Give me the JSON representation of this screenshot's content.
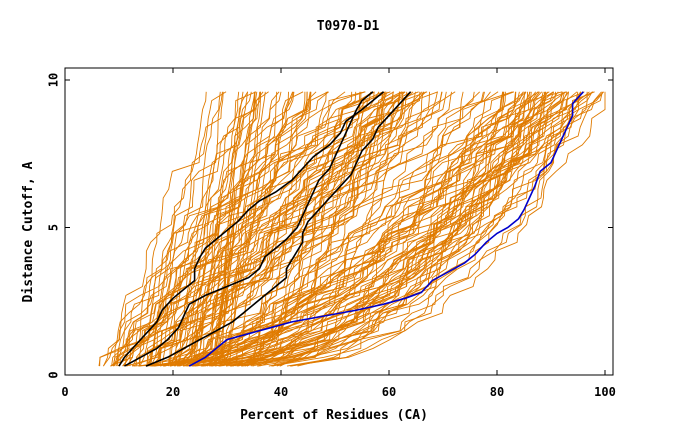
{
  "chart_data": {
    "type": "line",
    "title": "T0970-D1",
    "xlabel": "Percent of Residues (CA)",
    "ylabel": "Distance Cutoff, A",
    "xlim": [
      0,
      100
    ],
    "ylim": [
      0,
      10
    ],
    "xticks": [
      0,
      20,
      40,
      60,
      80,
      100
    ],
    "yticks": [
      0,
      5,
      10
    ],
    "xtick_labels": [
      "0",
      "20",
      "40",
      "60",
      "80",
      "100"
    ],
    "ytick_labels": [
      "0",
      "5",
      "10"
    ],
    "grid": false,
    "colors": {
      "background_models": "#e07b00",
      "highlight_black": "#000000",
      "highlight_blue": "#0000cc",
      "axes": "#000000"
    },
    "highlight_series": [
      {
        "color": "black",
        "points": [
          [
            10,
            0.3
          ],
          [
            11,
            0.6
          ],
          [
            13,
            1.0
          ],
          [
            15,
            1.4
          ],
          [
            17,
            1.8
          ],
          [
            18,
            2.2
          ],
          [
            20,
            2.6
          ],
          [
            22,
            2.9
          ],
          [
            24,
            3.2
          ],
          [
            24,
            3.6
          ],
          [
            25,
            4.0
          ],
          [
            26,
            4.3
          ],
          [
            28,
            4.6
          ],
          [
            30,
            4.9
          ],
          [
            32,
            5.2
          ],
          [
            34,
            5.6
          ],
          [
            36,
            5.9
          ],
          [
            39,
            6.2
          ],
          [
            42,
            6.6
          ],
          [
            44,
            7.0
          ],
          [
            46,
            7.4
          ],
          [
            49,
            7.8
          ],
          [
            51,
            8.2
          ],
          [
            52,
            8.6
          ],
          [
            55,
            9.0
          ],
          [
            57,
            9.3
          ],
          [
            59,
            9.6
          ]
        ]
      },
      {
        "color": "black",
        "points": [
          [
            11,
            0.3
          ],
          [
            14,
            0.6
          ],
          [
            17,
            0.9
          ],
          [
            19,
            1.2
          ],
          [
            21,
            1.6
          ],
          [
            22,
            2.0
          ],
          [
            23,
            2.4
          ],
          [
            26,
            2.7
          ],
          [
            30,
            3.0
          ],
          [
            34,
            3.3
          ],
          [
            36,
            3.6
          ],
          [
            37,
            4.0
          ],
          [
            39,
            4.3
          ],
          [
            41,
            4.6
          ],
          [
            43,
            5.0
          ],
          [
            44,
            5.4
          ],
          [
            45,
            5.8
          ],
          [
            46,
            6.2
          ],
          [
            47,
            6.6
          ],
          [
            49,
            7.0
          ],
          [
            50,
            7.4
          ],
          [
            51,
            7.8
          ],
          [
            52,
            8.2
          ],
          [
            53,
            8.6
          ],
          [
            54,
            9.0
          ],
          [
            55,
            9.3
          ],
          [
            57,
            9.6
          ]
        ]
      },
      {
        "color": "black",
        "points": [
          [
            15,
            0.3
          ],
          [
            19,
            0.6
          ],
          [
            22,
            0.9
          ],
          [
            25,
            1.2
          ],
          [
            28,
            1.5
          ],
          [
            31,
            1.8
          ],
          [
            33,
            2.1
          ],
          [
            35,
            2.4
          ],
          [
            37,
            2.7
          ],
          [
            39,
            3.0
          ],
          [
            41,
            3.3
          ],
          [
            41,
            3.6
          ],
          [
            42,
            3.9
          ],
          [
            43,
            4.2
          ],
          [
            44,
            4.5
          ],
          [
            44,
            4.8
          ],
          [
            45,
            5.2
          ],
          [
            47,
            5.6
          ],
          [
            49,
            6.0
          ],
          [
            51,
            6.4
          ],
          [
            53,
            6.8
          ],
          [
            54,
            7.2
          ],
          [
            55,
            7.6
          ],
          [
            57,
            8.0
          ],
          [
            58,
            8.4
          ],
          [
            60,
            8.8
          ],
          [
            62,
            9.2
          ],
          [
            64,
            9.6
          ]
        ]
      },
      {
        "color": "blue",
        "points": [
          [
            23,
            0.3
          ],
          [
            26,
            0.6
          ],
          [
            28,
            0.9
          ],
          [
            30,
            1.2
          ],
          [
            34,
            1.4
          ],
          [
            38,
            1.6
          ],
          [
            42,
            1.8
          ],
          [
            48,
            2.0
          ],
          [
            54,
            2.2
          ],
          [
            59,
            2.4
          ],
          [
            63,
            2.6
          ],
          [
            66,
            2.8
          ],
          [
            68,
            3.2
          ],
          [
            71,
            3.5
          ],
          [
            74,
            3.8
          ],
          [
            76,
            4.1
          ],
          [
            78,
            4.5
          ],
          [
            80,
            4.8
          ],
          [
            82,
            5.0
          ],
          [
            84,
            5.3
          ],
          [
            85,
            5.6
          ],
          [
            86,
            6.0
          ],
          [
            87,
            6.4
          ],
          [
            88,
            6.9
          ],
          [
            90,
            7.2
          ],
          [
            91,
            7.6
          ],
          [
            92,
            8.0
          ],
          [
            93,
            8.4
          ],
          [
            94,
            8.8
          ],
          [
            94,
            9.2
          ],
          [
            96,
            9.6
          ]
        ]
      }
    ]
  }
}
